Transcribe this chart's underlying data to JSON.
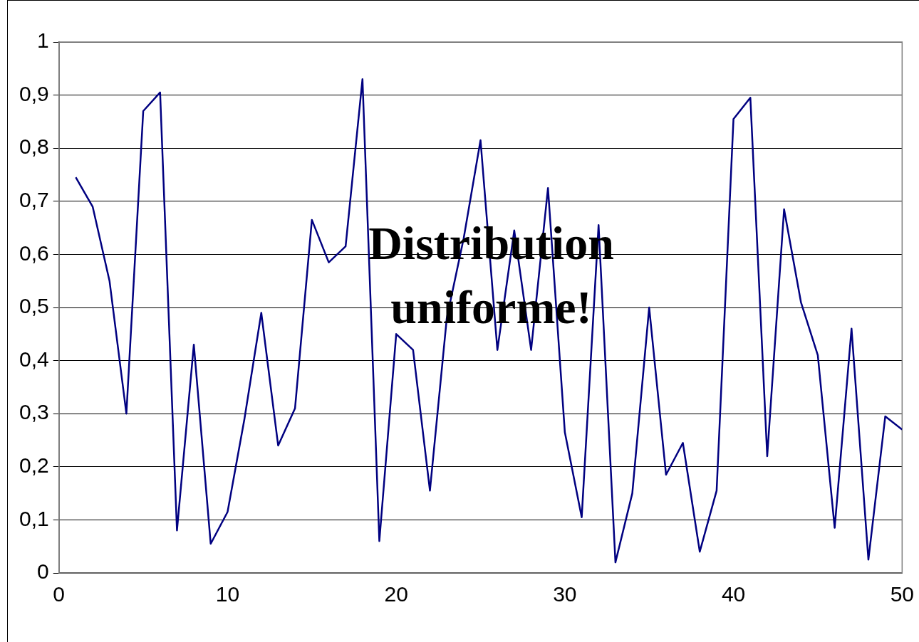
{
  "chart_data": {
    "type": "line",
    "x": [
      1,
      2,
      3,
      4,
      5,
      6,
      7,
      8,
      9,
      10,
      11,
      12,
      13,
      14,
      15,
      16,
      17,
      18,
      19,
      20,
      21,
      22,
      23,
      24,
      25,
      26,
      27,
      28,
      29,
      30,
      31,
      32,
      33,
      34,
      35,
      36,
      37,
      38,
      39,
      40,
      41,
      42,
      43,
      44,
      45,
      46,
      47,
      48,
      49,
      50
    ],
    "series": [
      {
        "color": "#000080",
        "values": [
          0.745,
          0.69,
          0.55,
          0.3,
          0.87,
          0.905,
          0.08,
          0.43,
          0.055,
          0.115,
          0.29,
          0.49,
          0.24,
          0.31,
          0.665,
          0.585,
          0.615,
          0.93,
          0.06,
          0.45,
          0.42,
          0.155,
          0.48,
          0.63,
          0.815,
          0.42,
          0.645,
          0.42,
          0.725,
          0.265,
          0.105,
          0.655,
          0.02,
          0.15,
          0.5,
          0.185,
          0.245,
          0.04,
          0.155,
          0.855,
          0.895,
          0.22,
          0.685,
          0.51,
          0.41,
          0.085,
          0.46,
          0.025,
          0.295,
          0.27
        ]
      }
    ],
    "xlim": [
      0,
      50
    ],
    "xticks": [
      0,
      10,
      20,
      30,
      40,
      50
    ],
    "ylim": [
      0,
      1
    ],
    "yticks": [
      {
        "value": 0,
        "label": "0"
      },
      {
        "value": 0.1,
        "label": "0,1"
      },
      {
        "value": 0.2,
        "label": "0,2"
      },
      {
        "value": 0.3,
        "label": "0,3"
      },
      {
        "value": 0.4,
        "label": "0,4"
      },
      {
        "value": 0.5,
        "label": "0,5"
      },
      {
        "value": 0.6,
        "label": "0,6"
      },
      {
        "value": 0.7,
        "label": "0,7"
      },
      {
        "value": 0.8,
        "label": "0,8"
      },
      {
        "value": 0.9,
        "label": "0,9"
      },
      {
        "value": 1,
        "label": "1"
      }
    ],
    "grid": "y",
    "marker": "none",
    "line_style": "solid",
    "annotations": [
      "Distribution uniforme!"
    ]
  }
}
